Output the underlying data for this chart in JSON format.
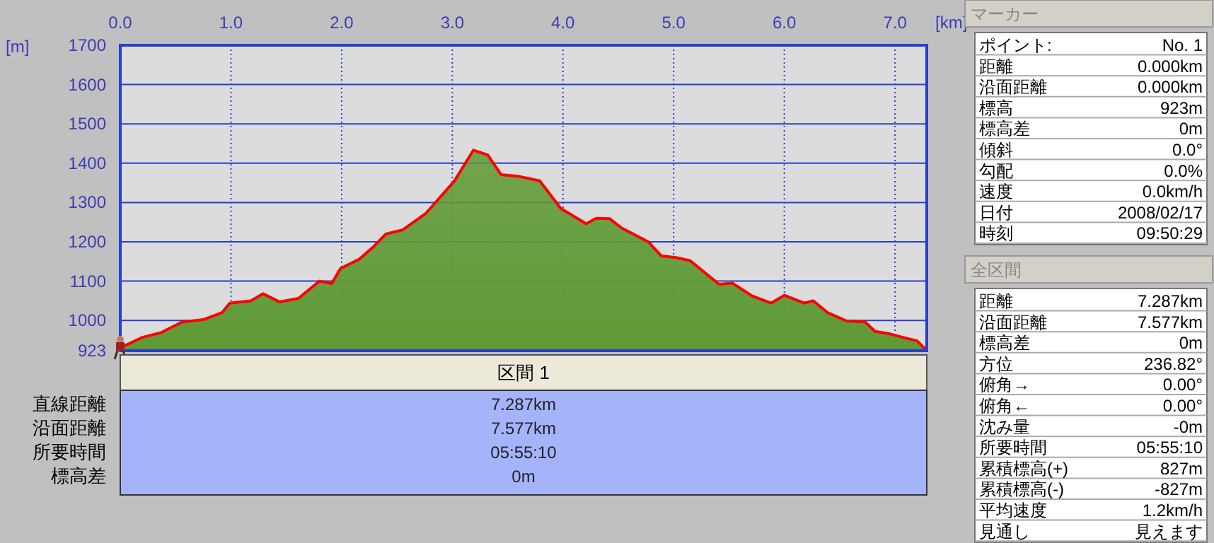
{
  "chart_data": [
    {
      "type": "area",
      "xlabel": "[km]",
      "ylabel": "[m]",
      "grid": true,
      "xlim": [
        0,
        7.287
      ],
      "ylim": [
        923,
        1700
      ],
      "xticks": [
        {
          "value": 0,
          "label": "0.0"
        },
        {
          "value": 1,
          "label": "1.0"
        },
        {
          "value": 2,
          "label": "2.0"
        },
        {
          "value": 3,
          "label": "3.0"
        },
        {
          "value": 4,
          "label": "4.0"
        },
        {
          "value": 5,
          "label": "5.0"
        },
        {
          "value": 6,
          "label": "6.0"
        },
        {
          "value": 7,
          "label": "7.0"
        }
      ],
      "yticks": [
        923,
        1000,
        1100,
        1200,
        1300,
        1400,
        1500,
        1600,
        1700
      ],
      "x": [
        0,
        0.02,
        0.2,
        0.37,
        0.43,
        0.56,
        0.75,
        0.92,
        0.99,
        1.18,
        1.29,
        1.44,
        1.61,
        1.8,
        1.91,
        1.99,
        2.16,
        2.29,
        2.4,
        2.55,
        2.76,
        3.02,
        3.19,
        3.32,
        3.44,
        3.59,
        3.79,
        3.98,
        4.21,
        4.3,
        4.42,
        4.53,
        4.77,
        4.89,
        5.02,
        5.15,
        5.41,
        5.53,
        5.71,
        5.88,
        6.0,
        6.18,
        6.26,
        6.39,
        6.56,
        6.73,
        6.82,
        6.95,
        7.07,
        7.2,
        7.287
      ],
      "series": [
        {
          "color": "#5f9a35",
          "values": [
            923,
            933,
            957,
            969,
            978,
            996,
            1002,
            1020,
            1044,
            1050,
            1068,
            1047,
            1056,
            1100,
            1094,
            1132,
            1156,
            1188,
            1220,
            1230,
            1272,
            1355,
            1433,
            1421,
            1371,
            1367,
            1355,
            1285,
            1246,
            1260,
            1259,
            1235,
            1200,
            1164,
            1160,
            1152,
            1092,
            1095,
            1062,
            1044,
            1064,
            1044,
            1050,
            1020,
            999,
            996,
            972,
            966,
            957,
            948,
            923
          ]
        }
      ]
    },
    {
      "type": "other",
      "title": "区間 1",
      "annotations": [
        "直線距離",
        "7.287km",
        "沿面距離",
        "7.577km",
        "所要時間",
        "05:55:10",
        "標高差",
        "0m"
      ]
    },
    {
      "type": "other",
      "title": "マーカー",
      "annotations": [
        "ポイント:",
        "No. 1",
        "距離",
        "0.000km",
        "沿面距離",
        "0.000km",
        "標高",
        "923m",
        "標高差",
        "0m",
        "傾斜",
        "0.0°",
        "勾配",
        "0.0%",
        "速度",
        "0.0km/h",
        "日付",
        "2008/02/17",
        "時刻",
        "09:50:29"
      ]
    },
    {
      "type": "other",
      "title": "全区間",
      "annotations": [
        "距離",
        "7.287km",
        "沿面距離",
        "7.577km",
        "標高差",
        "0m",
        "方位",
        "236.82°",
        "俯角→",
        "0.00°",
        "俯角←",
        "0.00°",
        "沈み量",
        "-0m",
        "所要時間",
        "05:55:10",
        "累積標高(+)",
        "827m",
        "累積標高(-)",
        "-827m",
        "平均速度",
        "1.2km/h",
        "見通し",
        "見えます"
      ]
    }
  ]
}
